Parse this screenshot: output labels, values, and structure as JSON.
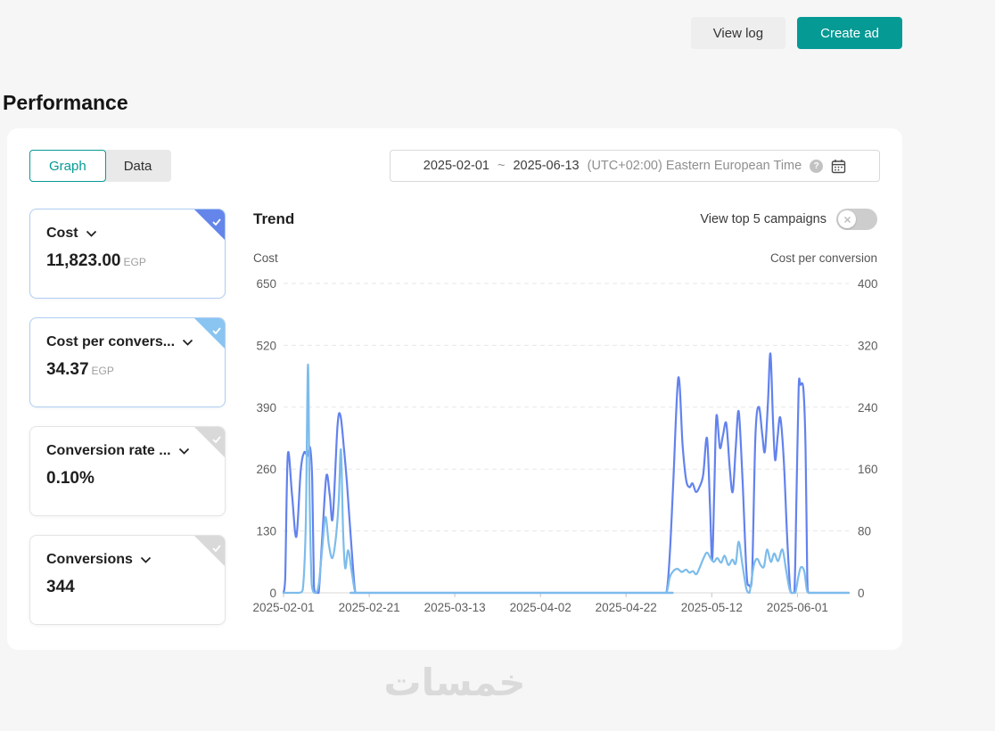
{
  "header": {
    "view_log_label": "View log",
    "create_ad_label": "Create ad"
  },
  "page_title": "Performance",
  "tabs": {
    "graph": "Graph",
    "data": "Data"
  },
  "date_range": {
    "start": "2025-02-01",
    "separator": "~",
    "end": "2025-06-13",
    "timezone": "(UTC+02:00) Eastern European Time",
    "help_icon_text": "?"
  },
  "metric_cards": [
    {
      "label": "Cost",
      "value": "11,823.00",
      "unit": "EGP",
      "selected": true,
      "corner_color": "#6486ea"
    },
    {
      "label": "Cost per convers...",
      "value": "34.37",
      "unit": "EGP",
      "selected": true,
      "corner_color": "#8ac4f0"
    },
    {
      "label": "Conversion rate ...",
      "value": "0.10%",
      "unit": "",
      "selected": false,
      "corner_color": "#d9d9d9"
    },
    {
      "label": "Conversions",
      "value": "344",
      "unit": "",
      "selected": false,
      "corner_color": "#d9d9d9"
    }
  ],
  "trend": {
    "title": "Trend",
    "toggle_label": "View top 5 campaigns",
    "toggle_on": false
  },
  "chart_data": {
    "type": "line",
    "title": "Trend",
    "x_domain": [
      0,
      132
    ],
    "x_ticks": [
      {
        "day": 0,
        "label": "2025-02-01"
      },
      {
        "day": 20,
        "label": "2025-02-21"
      },
      {
        "day": 40,
        "label": "2025-03-13"
      },
      {
        "day": 60,
        "label": "2025-04-02"
      },
      {
        "day": 80,
        "label": "2025-04-22"
      },
      {
        "day": 100,
        "label": "2025-05-12"
      },
      {
        "day": 120,
        "label": "2025-06-01"
      }
    ],
    "left_axis": {
      "title": "Cost",
      "ticks": [
        0,
        130,
        260,
        390,
        520,
        650
      ],
      "max": 650
    },
    "right_axis": {
      "title": "Cost per conversion",
      "ticks": [
        0,
        80,
        160,
        240,
        320,
        400
      ],
      "max": 400
    },
    "grid": "dashed-horizontal",
    "legend_position": "none",
    "series": [
      {
        "name": "Cost",
        "axis": "left",
        "color": "#6282ee",
        "points": [
          [
            0,
            0
          ],
          [
            0.4,
            30
          ],
          [
            1,
            290
          ],
          [
            2,
            205
          ],
          [
            3,
            118
          ],
          [
            4,
            255
          ],
          [
            4.8,
            295
          ],
          [
            5.6,
            288
          ],
          [
            6.2,
            305
          ],
          [
            6.7,
            235
          ],
          [
            7.1,
            15
          ],
          [
            7.4,
            0
          ],
          [
            8.2,
            0
          ],
          [
            9,
            110
          ],
          [
            10,
            245
          ],
          [
            10.8,
            205
          ],
          [
            11.5,
            158
          ],
          [
            12.6,
            350
          ],
          [
            13.3,
            372
          ],
          [
            14.1,
            305
          ],
          [
            14.8,
            232
          ],
          [
            15.8,
            105
          ],
          [
            16.6,
            12
          ],
          [
            17,
            0
          ],
          [
            19,
            0
          ],
          [
            55,
            0
          ],
          [
            88,
            0
          ],
          [
            89.4,
            0
          ],
          [
            90.2,
            80
          ],
          [
            91,
            230
          ],
          [
            92.2,
            452
          ],
          [
            93.2,
            310
          ],
          [
            94,
            238
          ],
          [
            94.8,
            222
          ],
          [
            95.5,
            230
          ],
          [
            96.3,
            212
          ],
          [
            97.1,
            222
          ],
          [
            98,
            248
          ],
          [
            98.9,
            325
          ],
          [
            99.6,
            180
          ],
          [
            100.1,
            69
          ],
          [
            100.6,
            220
          ],
          [
            101.1,
            372
          ],
          [
            101.9,
            305
          ],
          [
            102.6,
            330
          ],
          [
            103.4,
            356
          ],
          [
            104.2,
            262
          ],
          [
            104.9,
            212
          ],
          [
            105.6,
            305
          ],
          [
            106.3,
            381
          ],
          [
            107.2,
            235
          ],
          [
            108.1,
            45
          ],
          [
            108.7,
            16
          ],
          [
            109.4,
            35
          ],
          [
            110.2,
            330
          ],
          [
            111,
            391
          ],
          [
            111.8,
            332
          ],
          [
            112.4,
            297
          ],
          [
            113.1,
            395
          ],
          [
            113.7,
            503
          ],
          [
            114.3,
            362
          ],
          [
            114.8,
            279
          ],
          [
            115.4,
            330
          ],
          [
            116,
            368
          ],
          [
            116.8,
            282
          ],
          [
            117.6,
            120
          ],
          [
            118.3,
            8
          ],
          [
            118.6,
            0
          ],
          [
            119.3,
            0
          ],
          [
            119.8,
            210
          ],
          [
            120.3,
            432
          ],
          [
            120.7,
            437
          ],
          [
            121.4,
            428
          ],
          [
            121.9,
            305
          ],
          [
            122.3,
            35
          ],
          [
            122.6,
            0
          ],
          [
            124,
            0
          ],
          [
            132,
            0
          ]
        ]
      },
      {
        "name": "Cost per conversion",
        "axis": "right",
        "color": "#7cbceb",
        "points": [
          [
            0,
            0
          ],
          [
            3.5,
            0
          ],
          [
            4.5,
            4
          ],
          [
            5.2,
            90
          ],
          [
            5.7,
            295
          ],
          [
            6.1,
            120
          ],
          [
            6.6,
            10
          ],
          [
            7.4,
            0
          ],
          [
            8.2,
            10
          ],
          [
            9,
            55
          ],
          [
            9.8,
            98
          ],
          [
            10.6,
            62
          ],
          [
            11.4,
            45
          ],
          [
            12.2,
            70
          ],
          [
            12.9,
            120
          ],
          [
            13.4,
            185
          ],
          [
            13.9,
            80
          ],
          [
            14.4,
            32
          ],
          [
            15.1,
            55
          ],
          [
            15.9,
            28
          ],
          [
            16.6,
            4
          ],
          [
            17.1,
            0
          ],
          [
            19,
            0
          ],
          [
            55,
            0
          ],
          [
            88,
            0
          ],
          [
            89.4,
            0
          ],
          [
            90.2,
            20
          ],
          [
            91,
            28
          ],
          [
            92,
            31
          ],
          [
            93,
            27
          ],
          [
            94,
            30
          ],
          [
            94.8,
            26
          ],
          [
            95.6,
            28
          ],
          [
            96.4,
            24
          ],
          [
            97.2,
            33
          ],
          [
            98.1,
            45
          ],
          [
            98.9,
            52
          ],
          [
            99.8,
            44
          ],
          [
            100.5,
            40
          ],
          [
            101.3,
            45
          ],
          [
            102.2,
            39
          ],
          [
            103,
            48
          ],
          [
            103.9,
            36
          ],
          [
            104.8,
            43
          ],
          [
            105.6,
            38
          ],
          [
            106.3,
            66
          ],
          [
            107.2,
            35
          ],
          [
            108.1,
            5
          ],
          [
            108.8,
            0
          ],
          [
            109.8,
            35
          ],
          [
            110.6,
            44
          ],
          [
            111.4,
            36
          ],
          [
            112.2,
            34
          ],
          [
            112.9,
            56
          ],
          [
            113.8,
            40
          ],
          [
            114.6,
            51
          ],
          [
            115.5,
            41
          ],
          [
            116.5,
            56
          ],
          [
            117.4,
            28
          ],
          [
            118.2,
            4
          ],
          [
            118.8,
            0
          ],
          [
            119.5,
            0
          ],
          [
            120.2,
            20
          ],
          [
            120.8,
            33
          ],
          [
            121.6,
            28
          ],
          [
            122.2,
            4
          ],
          [
            122.7,
            0
          ],
          [
            124,
            0
          ],
          [
            132,
            0
          ]
        ]
      }
    ]
  },
  "watermark": "خمسات",
  "colors": {
    "teal": "#069a95",
    "selected_card_border": "#aecdf5"
  }
}
